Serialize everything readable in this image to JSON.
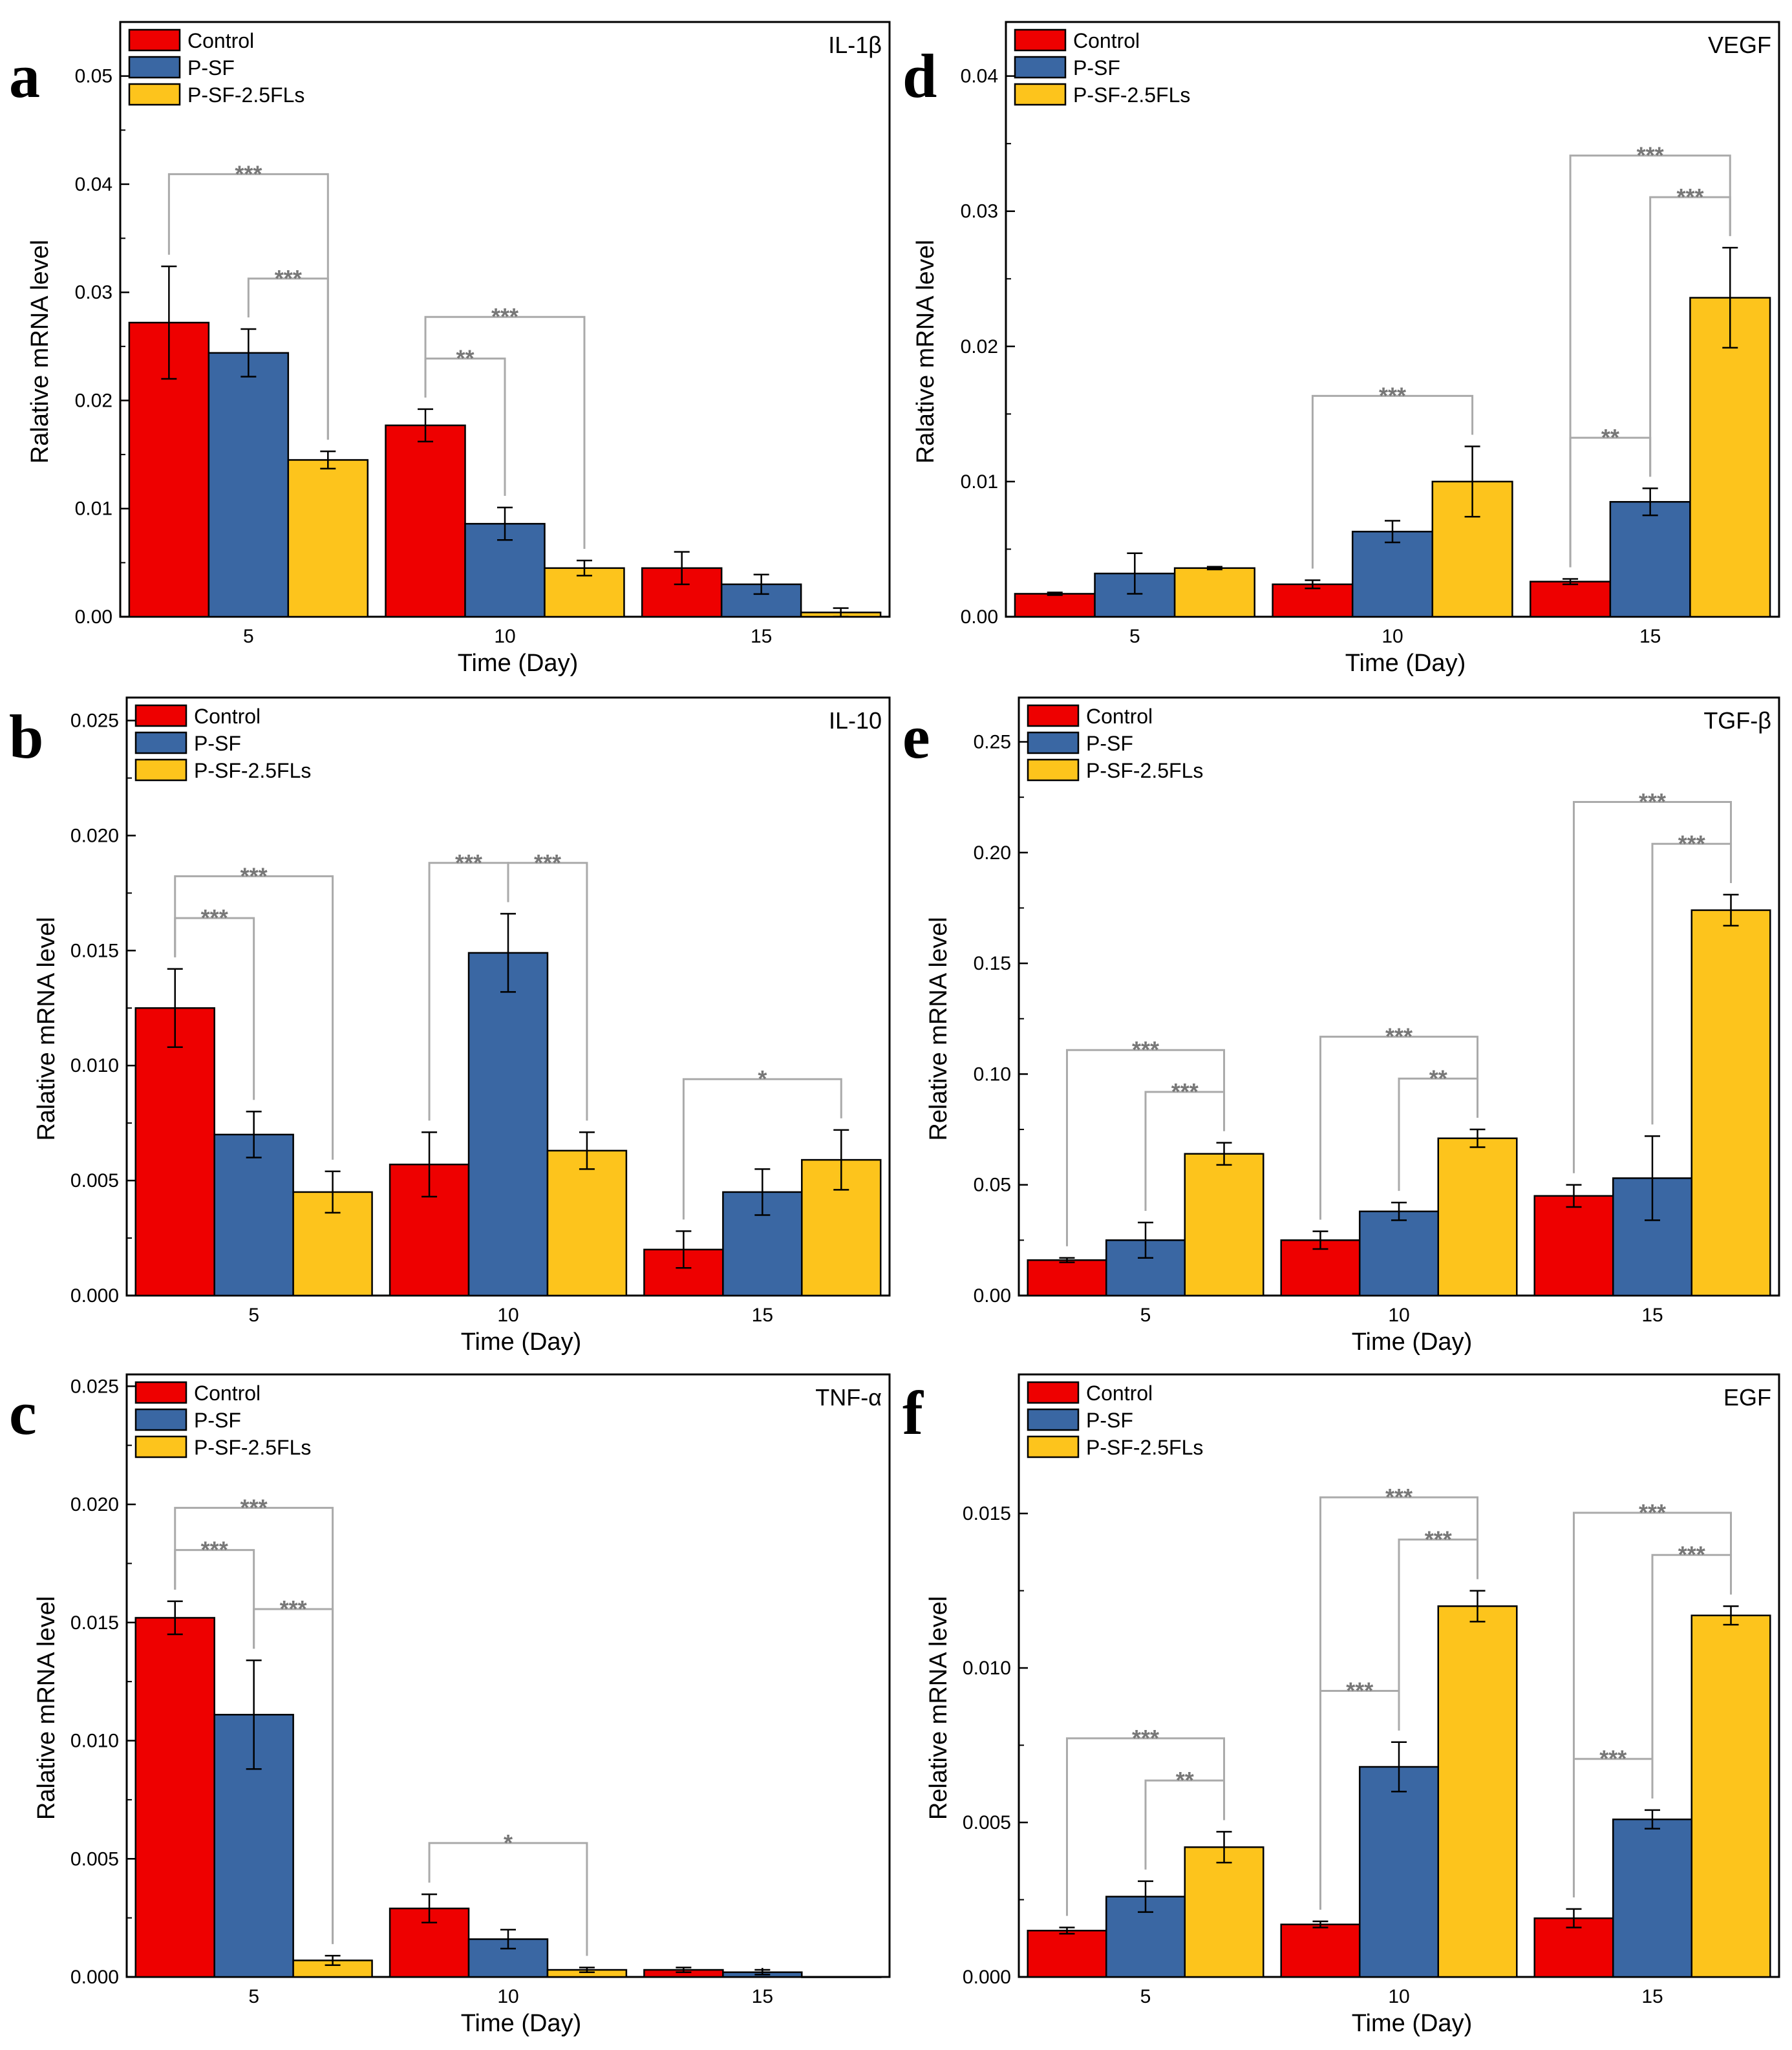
{
  "series_names": [
    "Control",
    "P-SF",
    "P-SF-2.5FLs"
  ],
  "colors": {
    "Control": "#ee0000",
    "P-SF": "#3a67a3",
    "P-SF-2.5FLs": "#fdc41c",
    "bracket": "#aaaaaa",
    "sig_text": "#777777"
  },
  "chart_data": [
    {
      "type": "bar",
      "letter": "a",
      "title": "IL-1β",
      "xlabel": "Time (Day)",
      "ylabel": "Ralative mRNA level",
      "categories": [
        "5",
        "10",
        "15"
      ],
      "ylim": [
        0,
        0.055
      ],
      "yticks": [
        0,
        0.01,
        0.02,
        0.03,
        0.04,
        0.05
      ],
      "ytick_labels": [
        "0.00",
        "0.01",
        "0.02",
        "0.03",
        "0.04",
        "0.05"
      ],
      "series": [
        {
          "name": "Control",
          "values": [
            0.0272,
            0.0177,
            0.0045
          ],
          "errors": [
            0.0052,
            0.0015,
            0.0015
          ]
        },
        {
          "name": "P-SF",
          "values": [
            0.0244,
            0.0086,
            0.003
          ],
          "errors": [
            0.0022,
            0.0015,
            0.0009
          ]
        },
        {
          "name": "P-SF-2.5FLs",
          "values": [
            0.0145,
            0.0045,
            0.0004
          ],
          "errors": [
            0.0008,
            0.0007,
            0.0004
          ]
        }
      ],
      "significance": [
        {
          "group": 0,
          "from": 0,
          "to": 2,
          "level": "top",
          "label": "***"
        },
        {
          "group": 0,
          "from": 1,
          "to": 2,
          "level": "low",
          "label": "***"
        },
        {
          "group": 1,
          "from": 0,
          "to": 2,
          "level": "top",
          "label": "***"
        },
        {
          "group": 1,
          "from": 0,
          "to": 1,
          "level": "low",
          "label": "**"
        }
      ]
    },
    {
      "type": "bar",
      "letter": "b",
      "title": "IL-10",
      "xlabel": "Time (Day)",
      "ylabel": "Ralative mRNA level",
      "categories": [
        "5",
        "10",
        "15"
      ],
      "ylim": [
        0,
        0.026
      ],
      "yticks": [
        0,
        0.005,
        0.01,
        0.015,
        0.02,
        0.025
      ],
      "ytick_labels": [
        "0.000",
        "0.005",
        "0.010",
        "0.015",
        "0.020",
        "0.025"
      ],
      "series": [
        {
          "name": "Control",
          "values": [
            0.0125,
            0.0057,
            0.002
          ],
          "errors": [
            0.0017,
            0.0014,
            0.0008
          ]
        },
        {
          "name": "P-SF",
          "values": [
            0.007,
            0.0149,
            0.0045
          ],
          "errors": [
            0.001,
            0.0017,
            0.001
          ]
        },
        {
          "name": "P-SF-2.5FLs",
          "values": [
            0.0045,
            0.0063,
            0.0059
          ],
          "errors": [
            0.0009,
            0.0008,
            0.0013
          ]
        }
      ],
      "significance": [
        {
          "group": 0,
          "from": 0,
          "to": 2,
          "level": "top",
          "label": "***"
        },
        {
          "group": 0,
          "from": 0,
          "to": 1,
          "level": "low",
          "label": "***"
        },
        {
          "group": 1,
          "from": 0,
          "to": 1,
          "level": "low",
          "label": "***"
        },
        {
          "group": 1,
          "from": 1,
          "to": 2,
          "level": "low",
          "label": "***"
        },
        {
          "group": 2,
          "from": 0,
          "to": 2,
          "level": "low",
          "label": "*"
        }
      ]
    },
    {
      "type": "bar",
      "letter": "c",
      "title": "TNF-α",
      "xlabel": "Time (Day)",
      "ylabel": "Ralative mRNA level",
      "categories": [
        "5",
        "10",
        "15"
      ],
      "ylim": [
        0,
        0.0255
      ],
      "yticks": [
        0,
        0.005,
        0.01,
        0.015,
        0.02,
        0.025
      ],
      "ytick_labels": [
        "0.000",
        "0.005",
        "0.010",
        "0.015",
        "0.020",
        "0.025"
      ],
      "series": [
        {
          "name": "Control",
          "values": [
            0.0152,
            0.0029,
            0.0003
          ],
          "errors": [
            0.0007,
            0.0006,
            0.0001
          ]
        },
        {
          "name": "P-SF",
          "values": [
            0.0111,
            0.0016,
            0.0002
          ],
          "errors": [
            0.0023,
            0.0004,
            0.0001
          ]
        },
        {
          "name": "P-SF-2.5FLs",
          "values": [
            0.0007,
            0.0003,
            0.0
          ],
          "errors": [
            0.0002,
            0.0001,
            0.0
          ]
        }
      ],
      "significance": [
        {
          "group": 0,
          "from": 0,
          "to": 2,
          "level": "top",
          "label": "***"
        },
        {
          "group": 0,
          "from": 0,
          "to": 1,
          "level": "low",
          "label": "***"
        },
        {
          "group": 0,
          "from": 1,
          "to": 2,
          "level": "low",
          "label": "***"
        },
        {
          "group": 1,
          "from": 0,
          "to": 2,
          "level": "low",
          "label": "*"
        }
      ]
    },
    {
      "type": "bar",
      "letter": "d",
      "title": "VEGF",
      "xlabel": "Time (Day)",
      "ylabel": "Ralative mRNA level",
      "categories": [
        "5",
        "10",
        "15"
      ],
      "ylim": [
        0,
        0.044
      ],
      "yticks": [
        0,
        0.01,
        0.02,
        0.03,
        0.04
      ],
      "ytick_labels": [
        "0.00",
        "0.01",
        "0.02",
        "0.03",
        "0.04"
      ],
      "series": [
        {
          "name": "Control",
          "values": [
            0.0017,
            0.0024,
            0.0026
          ],
          "errors": [
            0.0001,
            0.0003,
            0.0002
          ]
        },
        {
          "name": "P-SF",
          "values": [
            0.0032,
            0.0063,
            0.0085
          ],
          "errors": [
            0.0015,
            0.0008,
            0.001
          ]
        },
        {
          "name": "P-SF-2.5FLs",
          "values": [
            0.0036,
            0.01,
            0.0236
          ],
          "errors": [
            0.0001,
            0.0026,
            0.0037
          ]
        }
      ],
      "significance": [
        {
          "group": 1,
          "from": 0,
          "to": 2,
          "level": "low",
          "label": "***"
        },
        {
          "group": 2,
          "from": 0,
          "to": 2,
          "level": "top",
          "label": "***"
        },
        {
          "group": 2,
          "from": 0,
          "to": 1,
          "level": "low",
          "label": "**"
        },
        {
          "group": 2,
          "from": 1,
          "to": 2,
          "level": "low",
          "label": "***"
        }
      ]
    },
    {
      "type": "bar",
      "letter": "e",
      "title": "TGF-β",
      "xlabel": "Time (Day)",
      "ylabel": "Relative mRNA level",
      "categories": [
        "5",
        "10",
        "15"
      ],
      "ylim": [
        0,
        0.27
      ],
      "yticks": [
        0,
        0.05,
        0.1,
        0.15,
        0.2,
        0.25
      ],
      "ytick_labels": [
        "0.00",
        "0.05",
        "0.10",
        "0.15",
        "0.20",
        "0.25"
      ],
      "series": [
        {
          "name": "Control",
          "values": [
            0.016,
            0.025,
            0.045
          ],
          "errors": [
            0.001,
            0.004,
            0.005
          ]
        },
        {
          "name": "P-SF",
          "values": [
            0.025,
            0.038,
            0.053
          ],
          "errors": [
            0.008,
            0.004,
            0.019
          ]
        },
        {
          "name": "P-SF-2.5FLs",
          "values": [
            0.064,
            0.071,
            0.174
          ],
          "errors": [
            0.005,
            0.004,
            0.007
          ]
        }
      ],
      "significance": [
        {
          "group": 0,
          "from": 0,
          "to": 2,
          "level": "top",
          "label": "***"
        },
        {
          "group": 0,
          "from": 1,
          "to": 2,
          "level": "low",
          "label": "***"
        },
        {
          "group": 1,
          "from": 0,
          "to": 2,
          "level": "top",
          "label": "***"
        },
        {
          "group": 1,
          "from": 1,
          "to": 2,
          "level": "low",
          "label": "**"
        },
        {
          "group": 2,
          "from": 0,
          "to": 2,
          "level": "top",
          "label": "***"
        },
        {
          "group": 2,
          "from": 1,
          "to": 2,
          "level": "low",
          "label": "***"
        }
      ]
    },
    {
      "type": "bar",
      "letter": "f",
      "title": "EGF",
      "xlabel": "Time (Day)",
      "ylabel": "Relative mRNA level",
      "categories": [
        "5",
        "10",
        "15"
      ],
      "ylim": [
        0,
        0.0195
      ],
      "yticks": [
        0,
        0.005,
        0.01,
        0.015
      ],
      "ytick_labels": [
        "0.000",
        "0.005",
        "0.010",
        "0.015"
      ],
      "series": [
        {
          "name": "Control",
          "values": [
            0.0015,
            0.0017,
            0.0019
          ],
          "errors": [
            0.0001,
            0.0001,
            0.0003
          ]
        },
        {
          "name": "P-SF",
          "values": [
            0.0026,
            0.0068,
            0.0051
          ],
          "errors": [
            0.0005,
            0.0008,
            0.0003
          ]
        },
        {
          "name": "P-SF-2.5FLs",
          "values": [
            0.0042,
            0.012,
            0.0117
          ],
          "errors": [
            0.0005,
            0.0005,
            0.0003
          ]
        }
      ],
      "significance": [
        {
          "group": 0,
          "from": 0,
          "to": 2,
          "level": "top",
          "label": "***"
        },
        {
          "group": 0,
          "from": 1,
          "to": 2,
          "level": "low",
          "label": "**"
        },
        {
          "group": 1,
          "from": 0,
          "to": 2,
          "level": "top",
          "label": "***"
        },
        {
          "group": 1,
          "from": 0,
          "to": 1,
          "level": "low",
          "label": "***"
        },
        {
          "group": 1,
          "from": 1,
          "to": 2,
          "level": "low",
          "label": "***"
        },
        {
          "group": 2,
          "from": 0,
          "to": 2,
          "level": "top",
          "label": "***"
        },
        {
          "group": 2,
          "from": 0,
          "to": 1,
          "level": "low",
          "label": "***"
        },
        {
          "group": 2,
          "from": 1,
          "to": 2,
          "level": "low",
          "label": "***"
        }
      ]
    }
  ]
}
